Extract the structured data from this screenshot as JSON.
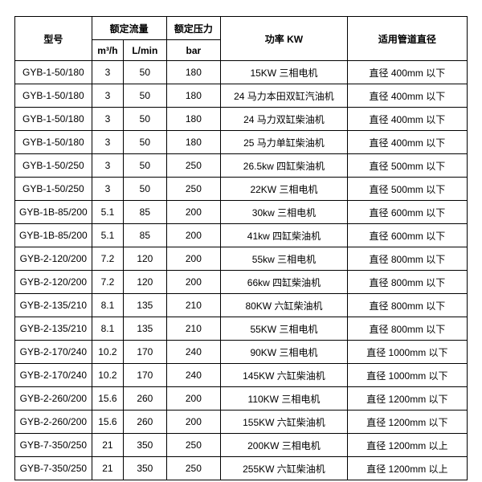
{
  "headers": {
    "model": "型号",
    "flow": "额定流量",
    "flow_unit1": "m³/h",
    "flow_unit2": "L/min",
    "pressure": "额定压力",
    "pressure_unit": "bar",
    "power": "功率 KW",
    "pipe": "适用管道直径"
  },
  "rows": [
    {
      "model": "GYB-1-50/180",
      "m3h": "3",
      "lmin": "50",
      "bar": "180",
      "power": "15KW 三相电机",
      "pipe": "直径 400mm 以下"
    },
    {
      "model": "GYB-1-50/180",
      "m3h": "3",
      "lmin": "50",
      "bar": "180",
      "power": "24 马力本田双缸汽油机",
      "pipe": "直径 400mm 以下"
    },
    {
      "model": "GYB-1-50/180",
      "m3h": "3",
      "lmin": "50",
      "bar": "180",
      "power": "24 马力双缸柴油机",
      "pipe": "直径 400mm 以下"
    },
    {
      "model": "GYB-1-50/180",
      "m3h": "3",
      "lmin": "50",
      "bar": "180",
      "power": "25 马力单缸柴油机",
      "pipe": "直径 400mm 以下"
    },
    {
      "model": "GYB-1-50/250",
      "m3h": "3",
      "lmin": "50",
      "bar": "250",
      "power": "26.5kw 四缸柴油机",
      "pipe": "直径 500mm 以下"
    },
    {
      "model": "GYB-1-50/250",
      "m3h": "3",
      "lmin": "50",
      "bar": "250",
      "power": "22KW 三相电机",
      "pipe": "直径 500mm 以下"
    },
    {
      "model": "GYB-1B-85/200",
      "m3h": "5.1",
      "lmin": "85",
      "bar": "200",
      "power": "30kw 三相电机",
      "pipe": "直径 600mm 以下"
    },
    {
      "model": "GYB-1B-85/200",
      "m3h": "5.1",
      "lmin": "85",
      "bar": "200",
      "power": "41kw 四缸柴油机",
      "pipe": "直径 600mm 以下"
    },
    {
      "model": "GYB-2-120/200",
      "m3h": "7.2",
      "lmin": "120",
      "bar": "200",
      "power": "55kw 三相电机",
      "pipe": "直径 800mm 以下"
    },
    {
      "model": "GYB-2-120/200",
      "m3h": "7.2",
      "lmin": "120",
      "bar": "200",
      "power": "66kw 四缸柴油机",
      "pipe": "直径 800mm 以下"
    },
    {
      "model": "GYB-2-135/210",
      "m3h": "8.1",
      "lmin": "135",
      "bar": "210",
      "power": "80KW 六缸柴油机",
      "pipe": "直径 800mm 以下"
    },
    {
      "model": "GYB-2-135/210",
      "m3h": "8.1",
      "lmin": "135",
      "bar": "210",
      "power": "55KW 三相电机",
      "pipe": "直径 800mm 以下"
    },
    {
      "model": "GYB-2-170/240",
      "m3h": "10.2",
      "lmin": "170",
      "bar": "240",
      "power": "90KW 三相电机",
      "pipe": "直径 1000mm 以下"
    },
    {
      "model": "GYB-2-170/240",
      "m3h": "10.2",
      "lmin": "170",
      "bar": "240",
      "power": "145KW 六缸柴油机",
      "pipe": "直径 1000mm 以下"
    },
    {
      "model": "GYB-2-260/200",
      "m3h": "15.6",
      "lmin": "260",
      "bar": "200",
      "power": "110KW 三相电机",
      "pipe": "直径 1200mm 以下"
    },
    {
      "model": "GYB-2-260/200",
      "m3h": "15.6",
      "lmin": "260",
      "bar": "200",
      "power": "155KW 六缸柴油机",
      "pipe": "直径 1200mm 以下"
    },
    {
      "model": "GYB-7-350/250",
      "m3h": "21",
      "lmin": "350",
      "bar": "250",
      "power": "200KW 三相电机",
      "pipe": "直径 1200mm 以上"
    },
    {
      "model": "GYB-7-350/250",
      "m3h": "21",
      "lmin": "350",
      "bar": "250",
      "power": "255KW 六缸柴油机",
      "pipe": "直径 1200mm 以上"
    }
  ]
}
